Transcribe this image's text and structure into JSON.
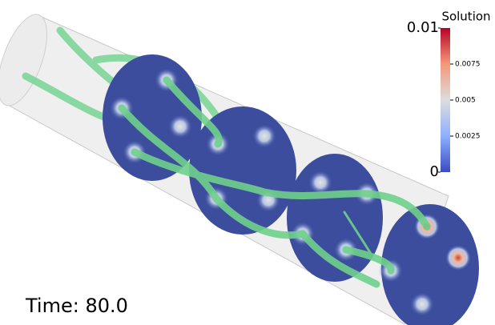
{
  "colorbar": {
    "title": "Solution",
    "range": [
      0,
      0.01
    ],
    "major_ticks": [
      0,
      0.01
    ],
    "minor_ticks": [
      0.0025,
      0.005,
      0.0075
    ]
  },
  "annotation": {
    "time": "Time: 80.0"
  }
}
